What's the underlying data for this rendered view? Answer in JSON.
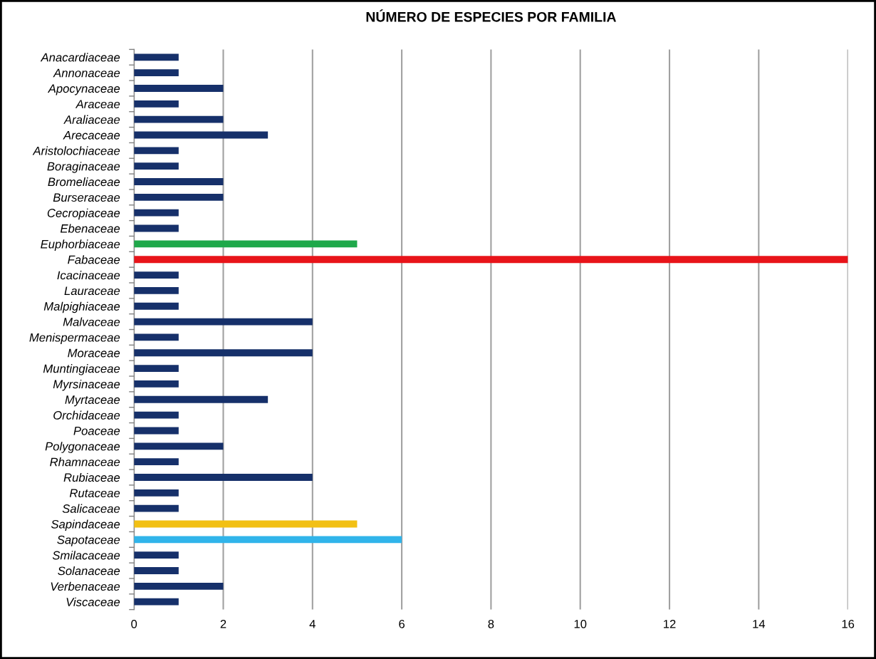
{
  "chart_data": {
    "type": "bar",
    "orientation": "horizontal",
    "title": "NÚMERO DE ESPECIES POR FAMILIA",
    "categories": [
      "Anacardiaceae",
      "Annonaceae",
      "Apocynaceae",
      "Araceae",
      "Araliaceae",
      "Arecaceae",
      "Aristolochiaceae",
      "Boraginaceae",
      "Bromeliaceae",
      "Burseraceae",
      "Cecropiaceae",
      "Ebenaceae",
      "Euphorbiaceae",
      "Fabaceae",
      "Icacinaceae",
      "Lauraceae",
      "Malpighiaceae",
      "Malvaceae",
      "Menispermaceae",
      "Moraceae",
      "Muntingiaceae",
      "Myrsinaceae",
      "Myrtaceae",
      "Orchidaceae",
      "Poaceae",
      "Polygonaceae",
      "Rhamnaceae",
      "Rubiaceae",
      "Rutaceae",
      "Salicaceae",
      "Sapindaceae",
      "Sapotaceae",
      "Smilacaceae",
      "Solanaceae",
      "Verbenaceae",
      "Viscaceae"
    ],
    "values": [
      1,
      1,
      2,
      1,
      2,
      3,
      1,
      1,
      2,
      2,
      1,
      1,
      5,
      16,
      1,
      1,
      1,
      4,
      1,
      4,
      1,
      1,
      3,
      1,
      1,
      2,
      1,
      4,
      1,
      1,
      5,
      6,
      1,
      1,
      2,
      1
    ],
    "colors": [
      "#16306a",
      "#16306a",
      "#16306a",
      "#16306a",
      "#16306a",
      "#16306a",
      "#16306a",
      "#16306a",
      "#16306a",
      "#16306a",
      "#16306a",
      "#16306a",
      "#1fa84a",
      "#e8141a",
      "#16306a",
      "#16306a",
      "#16306a",
      "#16306a",
      "#16306a",
      "#16306a",
      "#16306a",
      "#16306a",
      "#16306a",
      "#16306a",
      "#16306a",
      "#16306a",
      "#16306a",
      "#16306a",
      "#16306a",
      "#16306a",
      "#f2c014",
      "#30b4ea",
      "#16306a",
      "#16306a",
      "#16306a",
      "#16306a"
    ],
    "xlim": [
      0,
      16
    ],
    "xticks": [
      0,
      2,
      4,
      6,
      8,
      10,
      12,
      14,
      16
    ],
    "grid": "x",
    "legend": false
  }
}
